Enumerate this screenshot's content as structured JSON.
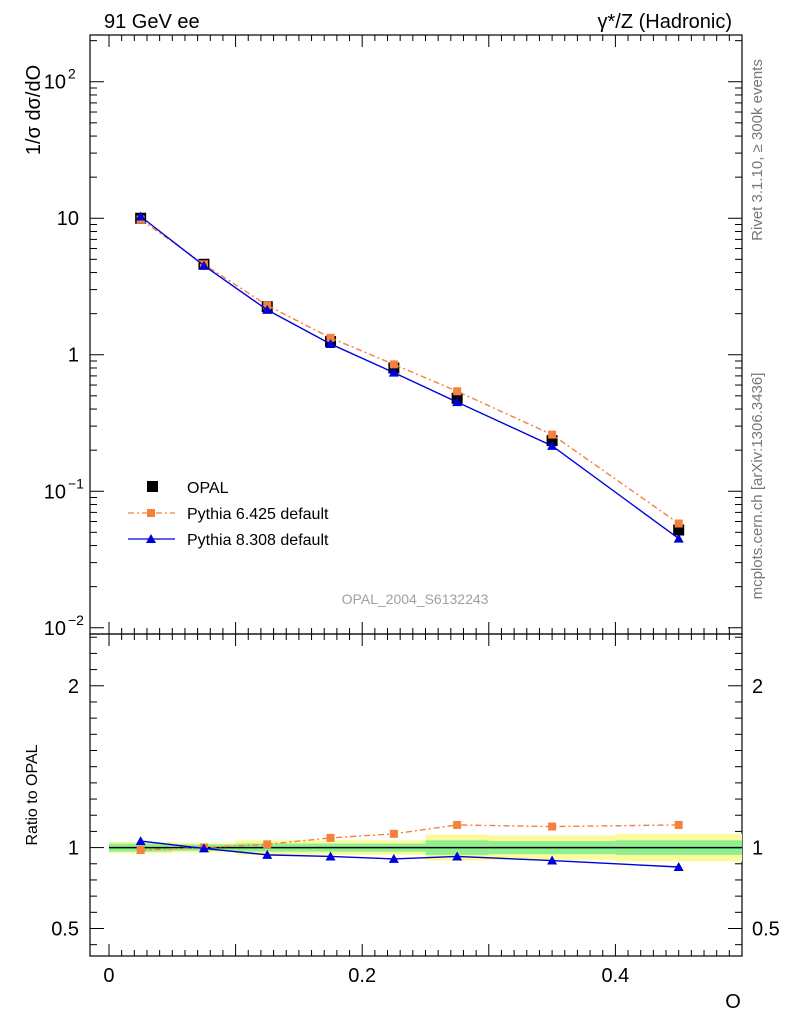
{
  "header": {
    "left": "91 GeV ee",
    "right": "γ*/Z (Hadronic)"
  },
  "side_labels": {
    "rivet": "Rivet 3.1.10, ≥ 300k events",
    "mcplots": "mcplots.cern.ch [arXiv:1306.3436]"
  },
  "watermark": "OPAL_2004_S6132243",
  "legend": {
    "items": [
      {
        "label": "OPAL",
        "color": "#000000",
        "marker": "square"
      },
      {
        "label": "Pythia 6.425 default",
        "color": "#f4813c",
        "marker": "square",
        "dash": "dashdot"
      },
      {
        "label": "Pythia 8.308 default",
        "color": "#0000dd",
        "marker": "triangle"
      }
    ]
  },
  "chart_data": [
    {
      "type": "line",
      "ylabel": "1/σ dσ/dO",
      "yscale": "log",
      "xlim": [
        -0.015,
        0.5
      ],
      "ylim": [
        0.009,
        220
      ],
      "ytick_labels": [
        {
          "value": 0.01,
          "base": "10",
          "exp": "−2"
        },
        {
          "value": 0.1,
          "base": "10",
          "exp": "−1"
        },
        {
          "value": 1,
          "base": "1",
          "exp": ""
        },
        {
          "value": 10,
          "base": "10",
          "exp": ""
        },
        {
          "value": 100,
          "base": "10",
          "exp": "2"
        }
      ],
      "x": [
        0.025,
        0.075,
        0.125,
        0.175,
        0.225,
        0.275,
        0.35,
        0.45
      ],
      "series": [
        {
          "name": "OPAL",
          "values": [
            10.0,
            4.6,
            2.25,
            1.25,
            0.8,
            0.48,
            0.235,
            0.052
          ]
        },
        {
          "name": "Pythia 6.425 default",
          "values": [
            9.8,
            4.6,
            2.3,
            1.33,
            0.85,
            0.54,
            0.26,
            0.058
          ]
        },
        {
          "name": "Pythia 8.308 default",
          "values": [
            10.3,
            4.5,
            2.13,
            1.2,
            0.74,
            0.45,
            0.215,
            0.045
          ]
        }
      ]
    },
    {
      "type": "line",
      "ylabel": "Ratio to OPAL",
      "xlabel": "O",
      "xlim": [
        -0.015,
        0.5
      ],
      "ylim": [
        0.33,
        2.32
      ],
      "xtick_labels": [
        "0",
        "0.2",
        "0.4"
      ],
      "ytick_labels": [
        "0.5",
        "1",
        "2"
      ],
      "bin_edges": [
        0.0,
        0.05,
        0.1,
        0.15,
        0.2,
        0.25,
        0.3,
        0.4,
        0.5
      ],
      "band_inner": [
        0.025,
        0.02,
        0.025,
        0.025,
        0.025,
        0.045,
        0.04,
        0.045
      ],
      "band_outer": [
        0.035,
        0.03,
        0.045,
        0.045,
        0.045,
        0.08,
        0.075,
        0.085
      ],
      "x": [
        0.025,
        0.075,
        0.125,
        0.175,
        0.225,
        0.275,
        0.35,
        0.45
      ],
      "series": [
        {
          "name": "Pythia 6.425 default",
          "values": [
            0.985,
            1.0,
            1.02,
            1.06,
            1.085,
            1.14,
            1.13,
            1.14
          ]
        },
        {
          "name": "Pythia 8.308 default",
          "values": [
            1.04,
            0.995,
            0.955,
            0.945,
            0.93,
            0.945,
            0.92,
            0.88
          ]
        }
      ]
    }
  ],
  "colors": {
    "band_inner": "#8ef08e",
    "band_outer": "#fbfb9b"
  }
}
